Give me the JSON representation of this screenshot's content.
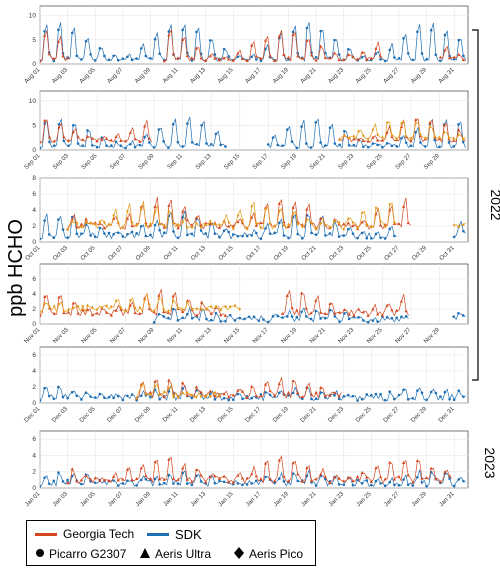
{
  "figure": {
    "ylabel": "ppb HCHO",
    "year_labels": [
      "2022",
      "2023"
    ],
    "colors": {
      "georgia_tech": "#d4471f",
      "sdk": "#1f6fb4",
      "georgia_tech_pico": "#e39a1a"
    }
  },
  "legend": {
    "georgia_tech": "Georgia Tech",
    "sdk": "SDK",
    "picarro": "Picarro G2307",
    "aeris_ultra": "Aeris Ultra",
    "aeris_pico": "Aeris Pico"
  },
  "chart_data": [
    {
      "type": "scatter",
      "month": "Aug",
      "days": 31,
      "ylim": [
        0,
        12
      ],
      "yticks": [
        0,
        5,
        10
      ],
      "xticks": [
        "Aug 01",
        "Aug 03",
        "Aug 05",
        "Aug 07",
        "Aug 09",
        "Aug 11",
        "Aug 13",
        "Aug 15",
        "Aug 17",
        "Aug 19",
        "Aug 21",
        "Aug 23",
        "Aug 25",
        "Aug 27",
        "Aug 29",
        "Aug 31"
      ],
      "series": [
        {
          "group": "SDK",
          "instrument": "Picarro G2307",
          "segments": [
            [
              1,
              32
            ]
          ],
          "base": 1.0,
          "amp": 8.0
        },
        {
          "group": "Georgia Tech",
          "instrument": "Aeris Ultra",
          "segments": [
            [
              1,
              3
            ],
            [
              10,
              26
            ],
            [
              30,
              32
            ]
          ],
          "base": 1.0,
          "amp": 6.5
        }
      ]
    },
    {
      "type": "scatter",
      "month": "Sep",
      "days": 30,
      "ylim": [
        0,
        12
      ],
      "yticks": [
        0,
        5,
        10
      ],
      "xticks": [
        "Sep 01",
        "Sep 03",
        "Sep 05",
        "Sep 07",
        "Sep 09",
        "Sep 11",
        "Sep 13",
        "Sep 15",
        "Sep 17",
        "Sep 19",
        "Sep 21",
        "Sep 23",
        "Sep 25",
        "Sep 27",
        "Sep 29"
      ],
      "series": [
        {
          "group": "SDK",
          "instrument": "Picarro G2307",
          "segments": [
            [
              1,
              14
            ],
            [
              17,
              31
            ]
          ],
          "base": 0.8,
          "amp": 6.0
        },
        {
          "group": "Georgia Tech",
          "instrument": "Aeris Ultra",
          "segments": [
            [
              1,
              9
            ],
            [
              22,
              31
            ]
          ],
          "base": 2.0,
          "amp": 5.0
        },
        {
          "group": "Georgia Tech",
          "instrument": "Aeris Pico",
          "segments": [
            [
              22,
              31
            ]
          ],
          "base": 2.5,
          "amp": 4.0
        }
      ]
    },
    {
      "type": "scatter",
      "month": "Oct",
      "days": 31,
      "ylim": [
        0,
        8
      ],
      "yticks": [
        0,
        2,
        4,
        6,
        8
      ],
      "xticks": [
        "Oct 01",
        "Oct 03",
        "Oct 05",
        "Oct 07",
        "Oct 09",
        "Oct 11",
        "Oct 13",
        "Oct 15",
        "Oct 17",
        "Oct 19",
        "Oct 21",
        "Oct 23",
        "Oct 25",
        "Oct 27",
        "Oct 29",
        "Oct 31"
      ],
      "series": [
        {
          "group": "SDK",
          "instrument": "Picarro G2307",
          "segments": [
            [
              1,
              27
            ],
            [
              31,
              32
            ]
          ],
          "base": 0.8,
          "amp": 3.0
        },
        {
          "group": "Georgia Tech",
          "instrument": "Aeris Ultra",
          "segments": [
            [
              3,
              28
            ]
          ],
          "base": 2.0,
          "amp": 3.5
        },
        {
          "group": "Georgia Tech",
          "instrument": "Aeris Pico",
          "segments": [
            [
              3,
              27
            ],
            [
              31,
              32
            ]
          ],
          "base": 2.0,
          "amp": 3.0
        }
      ]
    },
    {
      "type": "scatter",
      "month": "Nov",
      "days": 30,
      "ylim": [
        0,
        8
      ],
      "yticks": [
        0,
        2,
        4,
        6
      ],
      "xticks": [
        "Nov 01",
        "Nov 03",
        "Nov 05",
        "Nov 07",
        "Nov 09",
        "Nov 11",
        "Nov 13",
        "Nov 15",
        "Nov 17",
        "Nov 19",
        "Nov 21",
        "Nov 23",
        "Nov 25",
        "Nov 27",
        "Nov 29"
      ],
      "series": [
        {
          "group": "SDK",
          "instrument": "Picarro G2307",
          "segments": [
            [
              9,
              27
            ],
            [
              30,
              31
            ]
          ],
          "base": 0.6,
          "amp": 1.4
        },
        {
          "group": "Georgia Tech",
          "instrument": "Aeris Ultra",
          "segments": [
            [
              1,
              14
            ],
            [
              18,
              27
            ]
          ],
          "base": 1.5,
          "amp": 3.0
        },
        {
          "group": "Georgia Tech",
          "instrument": "Aeris Pico",
          "segments": [
            [
              1,
              15
            ]
          ],
          "base": 2.0,
          "amp": 2.0
        }
      ]
    },
    {
      "type": "scatter",
      "month": "Dec",
      "days": 31,
      "ylim": [
        0,
        7
      ],
      "yticks": [
        0,
        2,
        4,
        6
      ],
      "xticks": [
        "Dec 01",
        "Dec 03",
        "Dec 05",
        "Dec 07",
        "Dec 09",
        "Dec 11",
        "Dec 13",
        "Dec 15",
        "Dec 17",
        "Dec 19",
        "Dec 21",
        "Dec 23",
        "Dec 25",
        "Dec 27",
        "Dec 29",
        "Dec 31"
      ],
      "series": [
        {
          "group": "SDK",
          "instrument": "Picarro G2307",
          "segments": [
            [
              1,
              32
            ]
          ],
          "base": 0.7,
          "amp": 1.3
        },
        {
          "group": "Georgia Tech",
          "instrument": "Aeris Ultra",
          "segments": [
            [
              8,
              23
            ]
          ],
          "base": 1.0,
          "amp": 2.0
        },
        {
          "group": "Georgia Tech",
          "instrument": "Aeris Pico",
          "segments": [
            [
              8,
              14
            ]
          ],
          "base": 1.0,
          "amp": 1.5
        }
      ]
    },
    {
      "type": "scatter",
      "month": "Jan",
      "days": 31,
      "ylim": [
        0,
        7
      ],
      "yticks": [
        0,
        2,
        4,
        6
      ],
      "xticks": [
        "Jan 01",
        "Jan 03",
        "Jan 05",
        "Jan 07",
        "Jan 09",
        "Jan 11",
        "Jan 13",
        "Jan 15",
        "Jan 17",
        "Jan 19",
        "Jan 21",
        "Jan 23",
        "Jan 25",
        "Jan 27",
        "Jan 29",
        "Jan 31"
      ],
      "series": [
        {
          "group": "SDK",
          "instrument": "Picarro G2307",
          "segments": [
            [
              1,
              32
            ]
          ],
          "base": 0.6,
          "amp": 1.4
        },
        {
          "group": "Georgia Tech",
          "instrument": "Aeris Ultra",
          "segments": [
            [
              3,
              31
            ]
          ],
          "base": 1.0,
          "amp": 2.8
        }
      ]
    }
  ]
}
